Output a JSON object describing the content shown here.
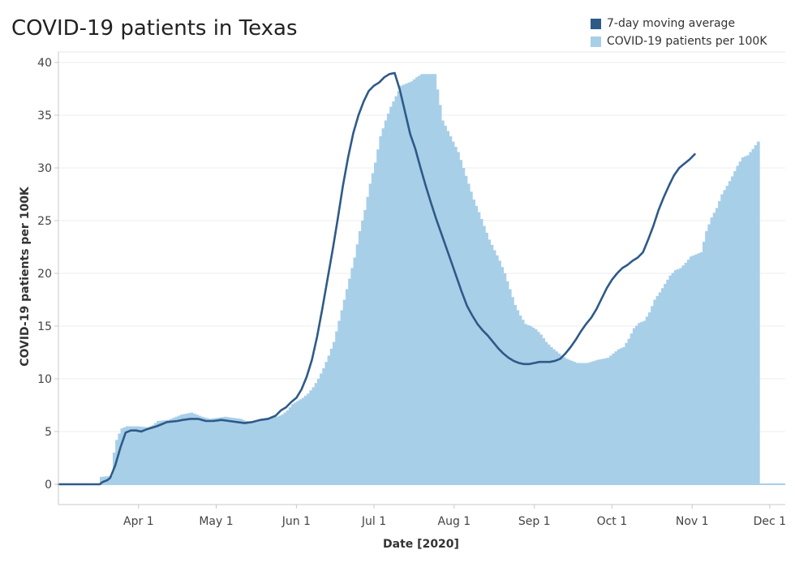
{
  "chart_data": {
    "type": "bar",
    "title": "COVID-19 patients in Texas",
    "xlabel": "Date [2020]",
    "ylabel": "COVID-19 patients per 100K",
    "ylim": [
      0,
      40
    ],
    "yticks": [
      0,
      5,
      10,
      15,
      20,
      25,
      30,
      35,
      40
    ],
    "x_range_days": [
      0,
      281
    ],
    "x_start_label": "2020-03-01",
    "xticks": [
      {
        "label": "Apr 1",
        "day": 31
      },
      {
        "label": "May 1",
        "day": 61
      },
      {
        "label": "Jun 1",
        "day": 92
      },
      {
        "label": "Jul 1",
        "day": 122
      },
      {
        "label": "Aug 1",
        "day": 153
      },
      {
        "label": "Sep 1",
        "day": 184
      },
      {
        "label": "Oct 1",
        "day": 214
      },
      {
        "label": "Nov 1",
        "day": 245
      },
      {
        "label": "Dec 1",
        "day": 275
      }
    ],
    "legend": [
      {
        "name": "7-day moving average",
        "color": "#2e5a88"
      },
      {
        "name": "COVID-19 patients per 100K",
        "color": "#a8cfe8"
      }
    ],
    "series": [
      {
        "name": "COVID-19 patients per 100K",
        "kind": "bars",
        "color": "#a8cfe8",
        "points": [
          [
            0,
            0
          ],
          [
            15,
            0
          ],
          [
            16,
            0.7
          ],
          [
            20,
            0.8
          ],
          [
            21,
            3.0
          ],
          [
            22,
            4.2
          ],
          [
            23,
            4.8
          ],
          [
            24,
            5.3
          ],
          [
            26,
            5.5
          ],
          [
            30,
            5.5
          ],
          [
            34,
            5.4
          ],
          [
            36,
            5.6
          ],
          [
            38,
            6.0
          ],
          [
            42,
            6.1
          ],
          [
            45,
            6.4
          ],
          [
            47,
            6.6
          ],
          [
            51,
            6.8
          ],
          [
            55,
            6.4
          ],
          [
            58,
            6.2
          ],
          [
            64,
            6.4
          ],
          [
            70,
            6.2
          ],
          [
            72,
            6.0
          ],
          [
            76,
            5.9
          ],
          [
            78,
            6.1
          ],
          [
            80,
            6.3
          ],
          [
            84,
            6.4
          ],
          [
            86,
            6.6
          ],
          [
            88,
            7.0
          ],
          [
            90,
            7.6
          ],
          [
            92,
            7.9
          ],
          [
            94,
            8.2
          ],
          [
            96,
            8.6
          ],
          [
            98,
            9.2
          ],
          [
            100,
            10.0
          ],
          [
            102,
            11.0
          ],
          [
            104,
            12.2
          ],
          [
            106,
            13.5
          ],
          [
            108,
            15.5
          ],
          [
            110,
            17.5
          ],
          [
            112,
            19.5
          ],
          [
            114,
            21.5
          ],
          [
            116,
            24.0
          ],
          [
            118,
            26.0
          ],
          [
            120,
            28.5
          ],
          [
            122,
            30.5
          ],
          [
            124,
            33.0
          ],
          [
            126,
            34.5
          ],
          [
            128,
            35.8
          ],
          [
            130,
            36.8
          ],
          [
            132,
            37.8
          ],
          [
            134,
            38.0
          ],
          [
            136,
            38.2
          ],
          [
            138,
            38.6
          ],
          [
            140,
            38.9
          ],
          [
            145,
            38.9
          ],
          [
            148,
            34.5
          ],
          [
            150,
            33.5
          ],
          [
            152,
            32.5
          ],
          [
            154,
            31.5
          ],
          [
            156,
            30.0
          ],
          [
            158,
            28.5
          ],
          [
            160,
            27.0
          ],
          [
            162,
            25.8
          ],
          [
            164,
            24.5
          ],
          [
            166,
            23.2
          ],
          [
            168,
            22.2
          ],
          [
            170,
            21.2
          ],
          [
            172,
            20.0
          ],
          [
            174,
            18.5
          ],
          [
            176,
            17.0
          ],
          [
            178,
            16.0
          ],
          [
            180,
            15.2
          ],
          [
            182,
            15.0
          ],
          [
            184,
            14.7
          ],
          [
            186,
            14.2
          ],
          [
            188,
            13.5
          ],
          [
            190,
            13.0
          ],
          [
            192,
            12.6
          ],
          [
            194,
            12.2
          ],
          [
            196,
            11.9
          ],
          [
            198,
            11.7
          ],
          [
            200,
            11.5
          ],
          [
            204,
            11.5
          ],
          [
            208,
            11.8
          ],
          [
            212,
            12.0
          ],
          [
            214,
            12.4
          ],
          [
            216,
            12.8
          ],
          [
            218,
            13.0
          ],
          [
            220,
            13.8
          ],
          [
            222,
            14.8
          ],
          [
            224,
            15.3
          ],
          [
            226,
            15.5
          ],
          [
            228,
            16.3
          ],
          [
            230,
            17.5
          ],
          [
            232,
            18.2
          ],
          [
            234,
            19.0
          ],
          [
            236,
            19.8
          ],
          [
            238,
            20.3
          ],
          [
            240,
            20.5
          ],
          [
            242,
            21.0
          ],
          [
            244,
            21.6
          ],
          [
            246,
            21.8
          ],
          [
            248,
            22.0
          ],
          [
            250,
            24.0
          ],
          [
            252,
            25.3
          ],
          [
            254,
            26.2
          ],
          [
            256,
            27.5
          ],
          [
            258,
            28.3
          ],
          [
            260,
            29.2
          ],
          [
            262,
            30.2
          ],
          [
            264,
            31.0
          ],
          [
            266,
            31.2
          ],
          [
            268,
            31.8
          ],
          [
            270,
            32.5
          ]
        ]
      },
      {
        "name": "7-day moving average",
        "kind": "line",
        "color": "#2e5a88",
        "points": [
          [
            0,
            0
          ],
          [
            16,
            0
          ],
          [
            17,
            0.2
          ],
          [
            19,
            0.4
          ],
          [
            20,
            0.6
          ],
          [
            22,
            1.8
          ],
          [
            24,
            3.5
          ],
          [
            26,
            4.9
          ],
          [
            28,
            5.1
          ],
          [
            30,
            5.1
          ],
          [
            32,
            5.0
          ],
          [
            34,
            5.2
          ],
          [
            38,
            5.5
          ],
          [
            42,
            5.9
          ],
          [
            46,
            6.0
          ],
          [
            48,
            6.1
          ],
          [
            51,
            6.2
          ],
          [
            54,
            6.2
          ],
          [
            57,
            6.0
          ],
          [
            60,
            6.0
          ],
          [
            63,
            6.1
          ],
          [
            66,
            6.0
          ],
          [
            69,
            5.9
          ],
          [
            72,
            5.8
          ],
          [
            75,
            5.9
          ],
          [
            78,
            6.1
          ],
          [
            81,
            6.2
          ],
          [
            84,
            6.5
          ],
          [
            86,
            7.0
          ],
          [
            88,
            7.3
          ],
          [
            90,
            7.8
          ],
          [
            92,
            8.2
          ],
          [
            94,
            9.0
          ],
          [
            96,
            10.2
          ],
          [
            98,
            11.8
          ],
          [
            100,
            14.0
          ],
          [
            102,
            16.6
          ],
          [
            104,
            19.4
          ],
          [
            106,
            22.2
          ],
          [
            108,
            25.2
          ],
          [
            110,
            28.3
          ],
          [
            112,
            31.0
          ],
          [
            114,
            33.3
          ],
          [
            116,
            35.0
          ],
          [
            118,
            36.3
          ],
          [
            120,
            37.3
          ],
          [
            122,
            37.8
          ],
          [
            124,
            38.1
          ],
          [
            126,
            38.6
          ],
          [
            128,
            38.9
          ],
          [
            130,
            39.0
          ],
          [
            132,
            37.4
          ],
          [
            134,
            35.3
          ],
          [
            136,
            33.2
          ],
          [
            138,
            31.8
          ],
          [
            140,
            30.0
          ],
          [
            142,
            28.3
          ],
          [
            144,
            26.7
          ],
          [
            146,
            25.2
          ],
          [
            148,
            23.8
          ],
          [
            150,
            22.4
          ],
          [
            152,
            21.0
          ],
          [
            154,
            19.6
          ],
          [
            156,
            18.2
          ],
          [
            158,
            16.9
          ],
          [
            160,
            16.0
          ],
          [
            162,
            15.2
          ],
          [
            164,
            14.6
          ],
          [
            166,
            14.1
          ],
          [
            168,
            13.5
          ],
          [
            170,
            12.9
          ],
          [
            172,
            12.4
          ],
          [
            174,
            12.0
          ],
          [
            176,
            11.7
          ],
          [
            178,
            11.5
          ],
          [
            180,
            11.4
          ],
          [
            182,
            11.4
          ],
          [
            184,
            11.5
          ],
          [
            186,
            11.6
          ],
          [
            188,
            11.6
          ],
          [
            190,
            11.6
          ],
          [
            192,
            11.7
          ],
          [
            194,
            11.9
          ],
          [
            196,
            12.4
          ],
          [
            198,
            13.0
          ],
          [
            200,
            13.7
          ],
          [
            202,
            14.5
          ],
          [
            204,
            15.2
          ],
          [
            206,
            15.8
          ],
          [
            208,
            16.6
          ],
          [
            210,
            17.6
          ],
          [
            212,
            18.6
          ],
          [
            214,
            19.4
          ],
          [
            216,
            20.0
          ],
          [
            218,
            20.5
          ],
          [
            220,
            20.8
          ],
          [
            222,
            21.2
          ],
          [
            224,
            21.5
          ],
          [
            226,
            22.0
          ],
          [
            228,
            23.2
          ],
          [
            230,
            24.5
          ],
          [
            232,
            26.0
          ],
          [
            234,
            27.2
          ],
          [
            236,
            28.3
          ],
          [
            238,
            29.3
          ],
          [
            240,
            30.0
          ],
          [
            242,
            30.4
          ],
          [
            244,
            30.8
          ],
          [
            246,
            31.3
          ]
        ]
      }
    ]
  }
}
